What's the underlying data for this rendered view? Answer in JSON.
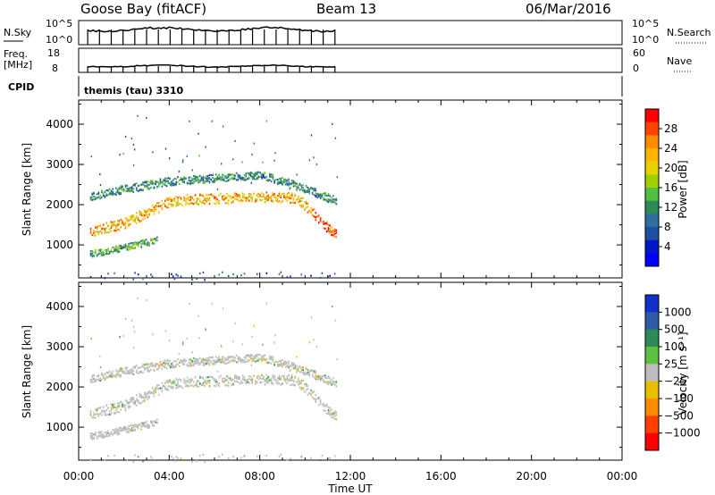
{
  "header": {
    "station": "Goose Bay (fitACF)",
    "beam": "Beam 13",
    "date": "06/Mar/2016"
  },
  "panels": {
    "nsky": {
      "left_label": "N.Sky",
      "left_ticks": [
        "10^5",
        "10^0"
      ],
      "right_label": "N.Search",
      "right_ticks": [
        "10^5",
        "10^0"
      ]
    },
    "freq": {
      "left_label_1": "Freq.",
      "left_label_2": "[MHz]",
      "left_ticks": [
        "18",
        "8"
      ],
      "right_label": "Nave",
      "right_ticks": [
        "60",
        "0"
      ]
    },
    "cpid": {
      "label": "CPID",
      "program": "themis (tau) 3310"
    }
  },
  "colorbars": {
    "power": {
      "label": "Power [dB]",
      "ticks": [
        "28",
        "24",
        "20",
        "16",
        "12",
        "8",
        "4"
      ],
      "colors": [
        "#ff0000",
        "#ff4400",
        "#ff8c00",
        "#ffb400",
        "#e6d200",
        "#a0d000",
        "#50c040",
        "#2e8b57",
        "#2f6fa0",
        "#1e4fa0",
        "#0018c8",
        "#0000ff"
      ]
    },
    "velocity": {
      "label": "Velocity [m s⁻¹]",
      "ticks": [
        "1000",
        "500",
        "100",
        "25",
        "−25",
        "−100",
        "−500",
        "−1000"
      ],
      "colors": [
        "#1530c8",
        "#2f5aa8",
        "#2e8b57",
        "#5cc040",
        "#bdbdbd",
        "#e6c000",
        "#ff8c00",
        "#ff4000",
        "#ff0000"
      ]
    }
  },
  "axes": {
    "ylabel": "Slant Range [km]",
    "xlabel": "Time UT",
    "yticks": [
      "4000",
      "3000",
      "2000",
      "1000"
    ],
    "xticks": [
      "00:00",
      "04:00",
      "08:00",
      "12:00",
      "16:00",
      "20:00",
      "00:00"
    ]
  },
  "chart_data": [
    {
      "type": "heatmap",
      "title": "Power",
      "xlabel": "Time UT",
      "ylabel": "Slant Range [km]",
      "xlim": [
        0,
        24
      ],
      "ylim": [
        180,
        4600
      ],
      "colorbar_label": "Power [dB]",
      "colorbar_ticks": [
        4,
        8,
        12,
        16,
        20,
        24,
        28
      ],
      "data_end_hour": 11.4,
      "echo_bands": [
        {
          "name": "lower",
          "t": [
            0.5,
            1.0,
            2.0,
            3.0,
            3.5
          ],
          "range_km": [
            800,
            840,
            960,
            1080,
            1140
          ],
          "power_db": 12
        },
        {
          "name": "middle",
          "t": [
            0.5,
            2.0,
            3.5,
            4.0,
            5.0,
            8.0,
            9.3,
            9.8,
            10.5,
            11.4
          ],
          "range_km": [
            1350,
            1550,
            1950,
            2100,
            2150,
            2200,
            2200,
            2100,
            1700,
            1250
          ],
          "power_db": 22
        },
        {
          "name": "upper",
          "t": [
            0.5,
            1.5,
            3.0,
            4.0,
            8.0,
            9.3,
            10.5,
            11.4
          ],
          "range_km": [
            2200,
            2350,
            2500,
            2600,
            2750,
            2550,
            2300,
            2100
          ],
          "power_db": 10
        },
        {
          "name": "near-range",
          "t": [
            0.5,
            11.4
          ],
          "range_km": [
            250,
            250
          ],
          "power_db": 6
        }
      ]
    },
    {
      "type": "heatmap",
      "title": "Velocity",
      "xlabel": "Time UT",
      "ylabel": "Slant Range [km]",
      "xlim": [
        0,
        24
      ],
      "ylim": [
        180,
        4600
      ],
      "colorbar_label": "Velocity [m s⁻¹]",
      "colorbar_ticks": [
        -1000,
        -500,
        -100,
        -25,
        25,
        100,
        500,
        1000
      ],
      "data_end_hour": 11.4,
      "dominant_velocity": "between −25 and 25 m/s (ground scatter)"
    }
  ]
}
